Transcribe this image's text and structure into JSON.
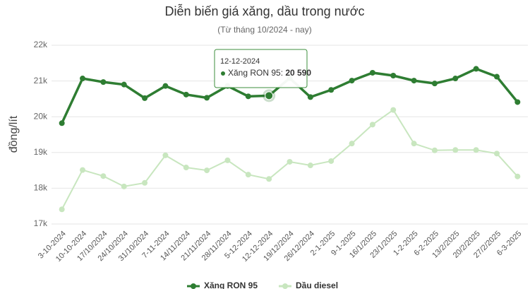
{
  "chart_data": {
    "type": "line",
    "title": "Diễn biến giá xăng, dầu trong nước",
    "subtitle": "(Từ tháng 10/2024 - nay)",
    "y_label": "đồng/lít",
    "categories": [
      "3-10-2024",
      "10-10-2024",
      "17/10/2024",
      "24/10/2024",
      "31/10/2024",
      "7-11-2024",
      "14/11/2024",
      "21/11/2024",
      "28/11/2024",
      "5-12-2024",
      "12-12-2024",
      "19/12/2024",
      "26/12/2024",
      "2-1-2025",
      "9-1-2025",
      "16/1/2025",
      "23/1/2025",
      "1-2-2025",
      "6-2-2025",
      "13/2/2025",
      "20/2/2025",
      "27/2/2025",
      "6-3-2025"
    ],
    "series": [
      {
        "name": "Xăng RON 95",
        "color": "#2e7d32",
        "values": [
          19820,
          21070,
          20970,
          20900,
          20520,
          20860,
          20620,
          20530,
          20860,
          20570,
          20590,
          21080,
          20550,
          20750,
          21010,
          21230,
          21150,
          21010,
          20930,
          21070,
          21340,
          21120,
          20410
        ]
      },
      {
        "name": "Dầu diesel",
        "color": "#c8e6bf",
        "values": [
          17410,
          18510,
          18340,
          18050,
          18150,
          18920,
          18580,
          18500,
          18780,
          18380,
          18260,
          18740,
          18640,
          18760,
          19250,
          19780,
          20190,
          19250,
          19060,
          19070,
          19070,
          18970,
          18330
        ]
      }
    ],
    "ylim": [
      17000,
      22000
    ],
    "yticks": [
      {
        "value": 17000,
        "label": "17k"
      },
      {
        "value": 18000,
        "label": "18k"
      },
      {
        "value": 19000,
        "label": "19k"
      },
      {
        "value": 20000,
        "label": "20k"
      },
      {
        "value": 21000,
        "label": "21k"
      },
      {
        "value": 22000,
        "label": "22k"
      }
    ],
    "grid": true,
    "legend": "bottom",
    "tooltip": {
      "title": "12-12-2024",
      "label": "Xăng RON 95: ",
      "value": 20590,
      "value_label": "20 590"
    }
  }
}
